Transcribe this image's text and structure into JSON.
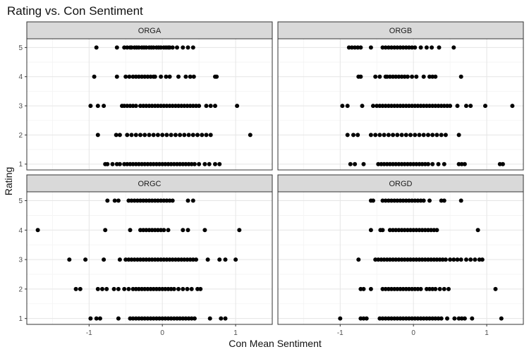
{
  "chart_data": {
    "type": "scatter",
    "title": "Rating vs. Con Sentiment",
    "xlabel": "Con Mean Sentiment",
    "ylabel": "Rating",
    "xlim": [
      -1.85,
      1.5
    ],
    "ylim": [
      0.8,
      5.3
    ],
    "x_ticks": [
      -1,
      0,
      1
    ],
    "x_tick_labels": [
      "-1",
      "0",
      "1"
    ],
    "y_ticks": [
      1,
      2,
      3,
      4,
      5
    ],
    "y_tick_labels": [
      "1",
      "2",
      "3",
      "4",
      "5"
    ],
    "grid": true,
    "point_color": "#000000",
    "panels": [
      {
        "label": "ORGA",
        "points": [
          {
            "rating": 5,
            "x": [
              -0.9,
              -0.62,
              -0.52,
              -0.48,
              -0.44,
              -0.42,
              -0.38,
              -0.35,
              -0.32,
              -0.28,
              -0.25,
              -0.22,
              -0.18,
              -0.15,
              -0.12,
              -0.08,
              -0.05,
              -0.02,
              0.02,
              0.05,
              0.08,
              0.1,
              0.14,
              0.2,
              0.28,
              0.35,
              0.42
            ]
          },
          {
            "rating": 4,
            "x": [
              -0.93,
              -0.62,
              -0.5,
              -0.45,
              -0.4,
              -0.36,
              -0.32,
              -0.28,
              -0.24,
              -0.2,
              -0.16,
              -0.12,
              -0.1,
              -0.02,
              0.05,
              0.1,
              0.22,
              0.32,
              0.38,
              0.43,
              0.72,
              0.74
            ]
          },
          {
            "rating": 3,
            "x": [
              -0.98,
              -0.88,
              -0.8,
              -0.55,
              -0.52,
              -0.48,
              -0.44,
              -0.4,
              -0.36,
              -0.3,
              -0.26,
              -0.22,
              -0.18,
              -0.14,
              -0.1,
              -0.06,
              -0.02,
              0.02,
              0.06,
              0.1,
              0.14,
              0.18,
              0.22,
              0.26,
              0.3,
              0.34,
              0.38,
              0.42,
              0.46,
              0.5,
              0.6,
              0.66,
              0.72,
              1.02
            ]
          },
          {
            "rating": 2,
            "x": [
              -0.88,
              -0.63,
              -0.58,
              -0.48,
              -0.42,
              -0.36,
              -0.3,
              -0.24,
              -0.18,
              -0.12,
              -0.06,
              0.0,
              0.06,
              0.12,
              0.18,
              0.24,
              0.3,
              0.36,
              0.42,
              0.48,
              0.54,
              0.6,
              0.66,
              1.2
            ]
          },
          {
            "rating": 1,
            "x": [
              -0.78,
              -0.75,
              -0.68,
              -0.62,
              -0.58,
              -0.52,
              -0.48,
              -0.44,
              -0.4,
              -0.36,
              -0.32,
              -0.28,
              -0.24,
              -0.2,
              -0.16,
              -0.12,
              -0.08,
              -0.04,
              0.0,
              0.04,
              0.08,
              0.12,
              0.16,
              0.2,
              0.24,
              0.28,
              0.32,
              0.36,
              0.4,
              0.44,
              0.5,
              0.58,
              0.64,
              0.72,
              0.78
            ]
          }
        ]
      },
      {
        "label": "ORGB",
        "points": [
          {
            "rating": 5,
            "x": [
              -0.88,
              -0.84,
              -0.8,
              -0.76,
              -0.72,
              -0.58,
              -0.42,
              -0.38,
              -0.34,
              -0.3,
              -0.26,
              -0.22,
              -0.18,
              -0.14,
              -0.1,
              -0.06,
              -0.02,
              0.02,
              0.1,
              0.18,
              0.25,
              0.35,
              0.55
            ]
          },
          {
            "rating": 4,
            "x": [
              -0.75,
              -0.72,
              -0.52,
              -0.46,
              -0.38,
              -0.36,
              -0.32,
              -0.28,
              -0.24,
              -0.2,
              -0.16,
              -0.12,
              -0.08,
              -0.02,
              0.04,
              0.14,
              0.22,
              0.26,
              0.3,
              0.65
            ]
          },
          {
            "rating": 3,
            "x": [
              -0.97,
              -0.9,
              -0.7,
              -0.55,
              -0.5,
              -0.46,
              -0.42,
              -0.38,
              -0.34,
              -0.3,
              -0.26,
              -0.22,
              -0.18,
              -0.14,
              -0.1,
              -0.06,
              -0.02,
              0.02,
              0.06,
              0.1,
              0.14,
              0.18,
              0.22,
              0.26,
              0.3,
              0.34,
              0.38,
              0.42,
              0.46,
              0.5,
              0.6,
              0.72,
              0.78,
              0.98,
              1.35
            ]
          },
          {
            "rating": 2,
            "x": [
              -0.9,
              -0.82,
              -0.76,
              -0.58,
              -0.52,
              -0.46,
              -0.4,
              -0.34,
              -0.28,
              -0.22,
              -0.16,
              -0.1,
              -0.04,
              0.02,
              0.08,
              0.14,
              0.2,
              0.26,
              0.32,
              0.38,
              0.44,
              0.62
            ]
          },
          {
            "rating": 1,
            "x": [
              -0.86,
              -0.8,
              -0.68,
              -0.48,
              -0.44,
              -0.4,
              -0.36,
              -0.32,
              -0.28,
              -0.24,
              -0.2,
              -0.16,
              -0.12,
              -0.08,
              -0.04,
              0.0,
              0.04,
              0.08,
              0.12,
              0.16,
              0.2,
              0.26,
              0.34,
              0.42,
              0.62,
              0.66,
              0.7,
              1.18,
              1.22
            ]
          }
        ]
      },
      {
        "label": "ORGC",
        "points": [
          {
            "rating": 5,
            "x": [
              -0.75,
              -0.65,
              -0.6,
              -0.46,
              -0.42,
              -0.38,
              -0.34,
              -0.3,
              -0.26,
              -0.22,
              -0.18,
              -0.14,
              -0.1,
              -0.06,
              -0.02,
              0.02,
              0.06,
              0.1,
              0.14,
              0.35,
              0.42
            ]
          },
          {
            "rating": 4,
            "x": [
              -1.7,
              -0.78,
              -0.44,
              -0.3,
              -0.26,
              -0.22,
              -0.18,
              -0.14,
              -0.1,
              -0.06,
              -0.02,
              0.02,
              0.08,
              0.28,
              0.35,
              0.58,
              1.05
            ]
          },
          {
            "rating": 3,
            "x": [
              -1.27,
              -1.05,
              -0.8,
              -0.58,
              -0.5,
              -0.46,
              -0.42,
              -0.38,
              -0.34,
              -0.3,
              -0.26,
              -0.22,
              -0.18,
              -0.14,
              -0.1,
              -0.06,
              -0.02,
              0.02,
              0.06,
              0.1,
              0.14,
              0.18,
              0.22,
              0.26,
              0.3,
              0.34,
              0.38,
              0.42,
              0.46,
              0.62,
              0.78,
              0.86,
              1.0
            ]
          },
          {
            "rating": 2,
            "x": [
              -1.18,
              -1.12,
              -0.88,
              -0.82,
              -0.76,
              -0.66,
              -0.6,
              -0.52,
              -0.46,
              -0.4,
              -0.36,
              -0.32,
              -0.28,
              -0.24,
              -0.2,
              -0.16,
              -0.12,
              -0.08,
              -0.04,
              0.0,
              0.04,
              0.08,
              0.12,
              0.16,
              0.22,
              0.28,
              0.34,
              0.4,
              0.48,
              0.52
            ]
          },
          {
            "rating": 1,
            "x": [
              -0.98,
              -0.9,
              -0.85,
              -0.6,
              -0.44,
              -0.4,
              -0.36,
              -0.32,
              -0.28,
              -0.24,
              -0.2,
              -0.16,
              -0.12,
              -0.08,
              -0.04,
              0.0,
              0.04,
              0.08,
              0.12,
              0.16,
              0.2,
              0.24,
              0.28,
              0.32,
              0.36,
              0.4,
              0.44,
              0.65,
              0.8,
              0.86
            ]
          }
        ]
      },
      {
        "label": "ORGD",
        "points": [
          {
            "rating": 5,
            "x": [
              -0.58,
              -0.55,
              -0.42,
              -0.38,
              -0.34,
              -0.3,
              -0.26,
              -0.22,
              -0.18,
              -0.14,
              -0.1,
              -0.06,
              -0.02,
              0.02,
              0.06,
              0.1,
              0.14,
              0.22,
              0.38,
              0.42,
              0.65
            ]
          },
          {
            "rating": 4,
            "x": [
              -0.58,
              -0.45,
              -0.42,
              -0.32,
              -0.28,
              -0.24,
              -0.2,
              -0.16,
              -0.12,
              -0.08,
              -0.04,
              0.0,
              0.04,
              0.08,
              0.12,
              0.16,
              0.2,
              0.24,
              0.28,
              0.32,
              0.88
            ]
          },
          {
            "rating": 3,
            "x": [
              -0.75,
              -0.52,
              -0.48,
              -0.44,
              -0.4,
              -0.36,
              -0.32,
              -0.28,
              -0.24,
              -0.2,
              -0.16,
              -0.12,
              -0.08,
              -0.04,
              0.0,
              0.04,
              0.08,
              0.12,
              0.16,
              0.2,
              0.24,
              0.28,
              0.32,
              0.36,
              0.4,
              0.44,
              0.5,
              0.55,
              0.6,
              0.65,
              0.72,
              0.78,
              0.84,
              0.9,
              0.94
            ]
          },
          {
            "rating": 2,
            "x": [
              -0.72,
              -0.68,
              -0.58,
              -0.42,
              -0.38,
              -0.34,
              -0.3,
              -0.26,
              -0.22,
              -0.18,
              -0.14,
              -0.1,
              -0.06,
              -0.02,
              0.02,
              0.06,
              0.1,
              0.18,
              0.22,
              0.26,
              0.3,
              0.36,
              0.42,
              0.48,
              1.12
            ]
          },
          {
            "rating": 1,
            "x": [
              -1.0,
              -0.72,
              -0.68,
              -0.64,
              -0.46,
              -0.42,
              -0.38,
              -0.34,
              -0.3,
              -0.26,
              -0.22,
              -0.18,
              -0.14,
              -0.1,
              -0.06,
              -0.02,
              0.02,
              0.06,
              0.1,
              0.14,
              0.18,
              0.22,
              0.26,
              0.3,
              0.34,
              0.38,
              0.46,
              0.56,
              0.62,
              0.66,
              0.7,
              0.8,
              1.2
            ]
          }
        ]
      }
    ]
  }
}
